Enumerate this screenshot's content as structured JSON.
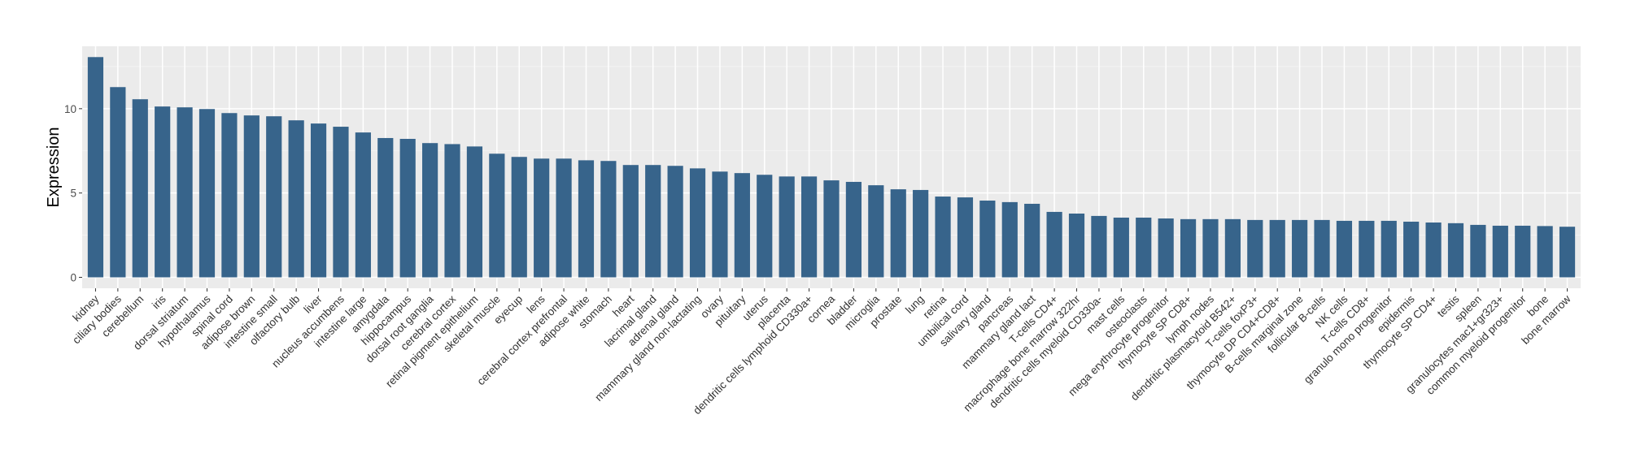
{
  "chart_data": {
    "type": "bar",
    "title": "",
    "xlabel": "",
    "ylabel": "Expression",
    "ylim": [
      -0.65,
      13.7
    ],
    "yticks": [
      0,
      5,
      10
    ],
    "grid": true,
    "bar_color": "#37648b",
    "panel_color": "#ebebeb",
    "categories": [
      "kidney",
      "ciliary bodies",
      "cerebellum",
      "iris",
      "dorsal striatum",
      "hypothalamus",
      "spinal cord",
      "adipose brown",
      "intestine small",
      "olfactory bulb",
      "liver",
      "nucleus accumbens",
      "intestine large",
      "amygdala",
      "hippocampus",
      "dorsal root ganglia",
      "cerebral cortex",
      "retinal pigment epithelium",
      "skeletal muscle",
      "eyecup",
      "lens",
      "cerebral cortex prefrontal",
      "adipose white",
      "stomach",
      "heart",
      "lacrimal gland",
      "adrenal gland",
      "mammary gland non-lactating",
      "ovary",
      "pituitary",
      "uterus",
      "placenta",
      "dendritic cells lymphoid CD330a+",
      "cornea",
      "bladder",
      "microglia",
      "prostate",
      "lung",
      "retina",
      "umbilical cord",
      "salivary gland",
      "pancreas",
      "mammary gland  lact",
      "T-cells CD4+",
      "macrophage bone marrow 322hr",
      "dendritic cells myeloid CD330a-",
      "mast cells",
      "osteoclasts",
      "mega erythrocyte progenitor",
      "thymocyte SP CD8+",
      "lymph nodes",
      "dendritic plasmacytoid B542+",
      "T-cells foxP3+",
      "thymocyte DP CD4+CD8+",
      "B-cells marginal zone",
      "follicular B-cells",
      "NK cells",
      "T-cells CD8+",
      "granulo mono progenitor",
      "epidermis",
      "thymocyte SP CD4+",
      "testis",
      "spleen",
      "granulocytes mac1+gr323+",
      "common myeloid progenitor",
      "bone",
      "bone marrow"
    ],
    "values": [
      13.06,
      11.28,
      10.56,
      10.13,
      10.08,
      9.98,
      9.74,
      9.6,
      9.55,
      9.31,
      9.12,
      8.93,
      8.59,
      8.26,
      8.21,
      7.96,
      7.9,
      7.76,
      7.33,
      7.14,
      7.04,
      7.04,
      6.94,
      6.9,
      6.66,
      6.66,
      6.61,
      6.46,
      6.27,
      6.18,
      6.08,
      5.98,
      5.98,
      5.75,
      5.66,
      5.46,
      5.22,
      5.18,
      4.79,
      4.74,
      4.55,
      4.46,
      4.36,
      3.88,
      3.78,
      3.64,
      3.54,
      3.54,
      3.49,
      3.45,
      3.45,
      3.45,
      3.4,
      3.4,
      3.4,
      3.4,
      3.35,
      3.35,
      3.35,
      3.3,
      3.25,
      3.21,
      3.11,
      3.06,
      3.06,
      3.04,
      3.0
    ]
  }
}
